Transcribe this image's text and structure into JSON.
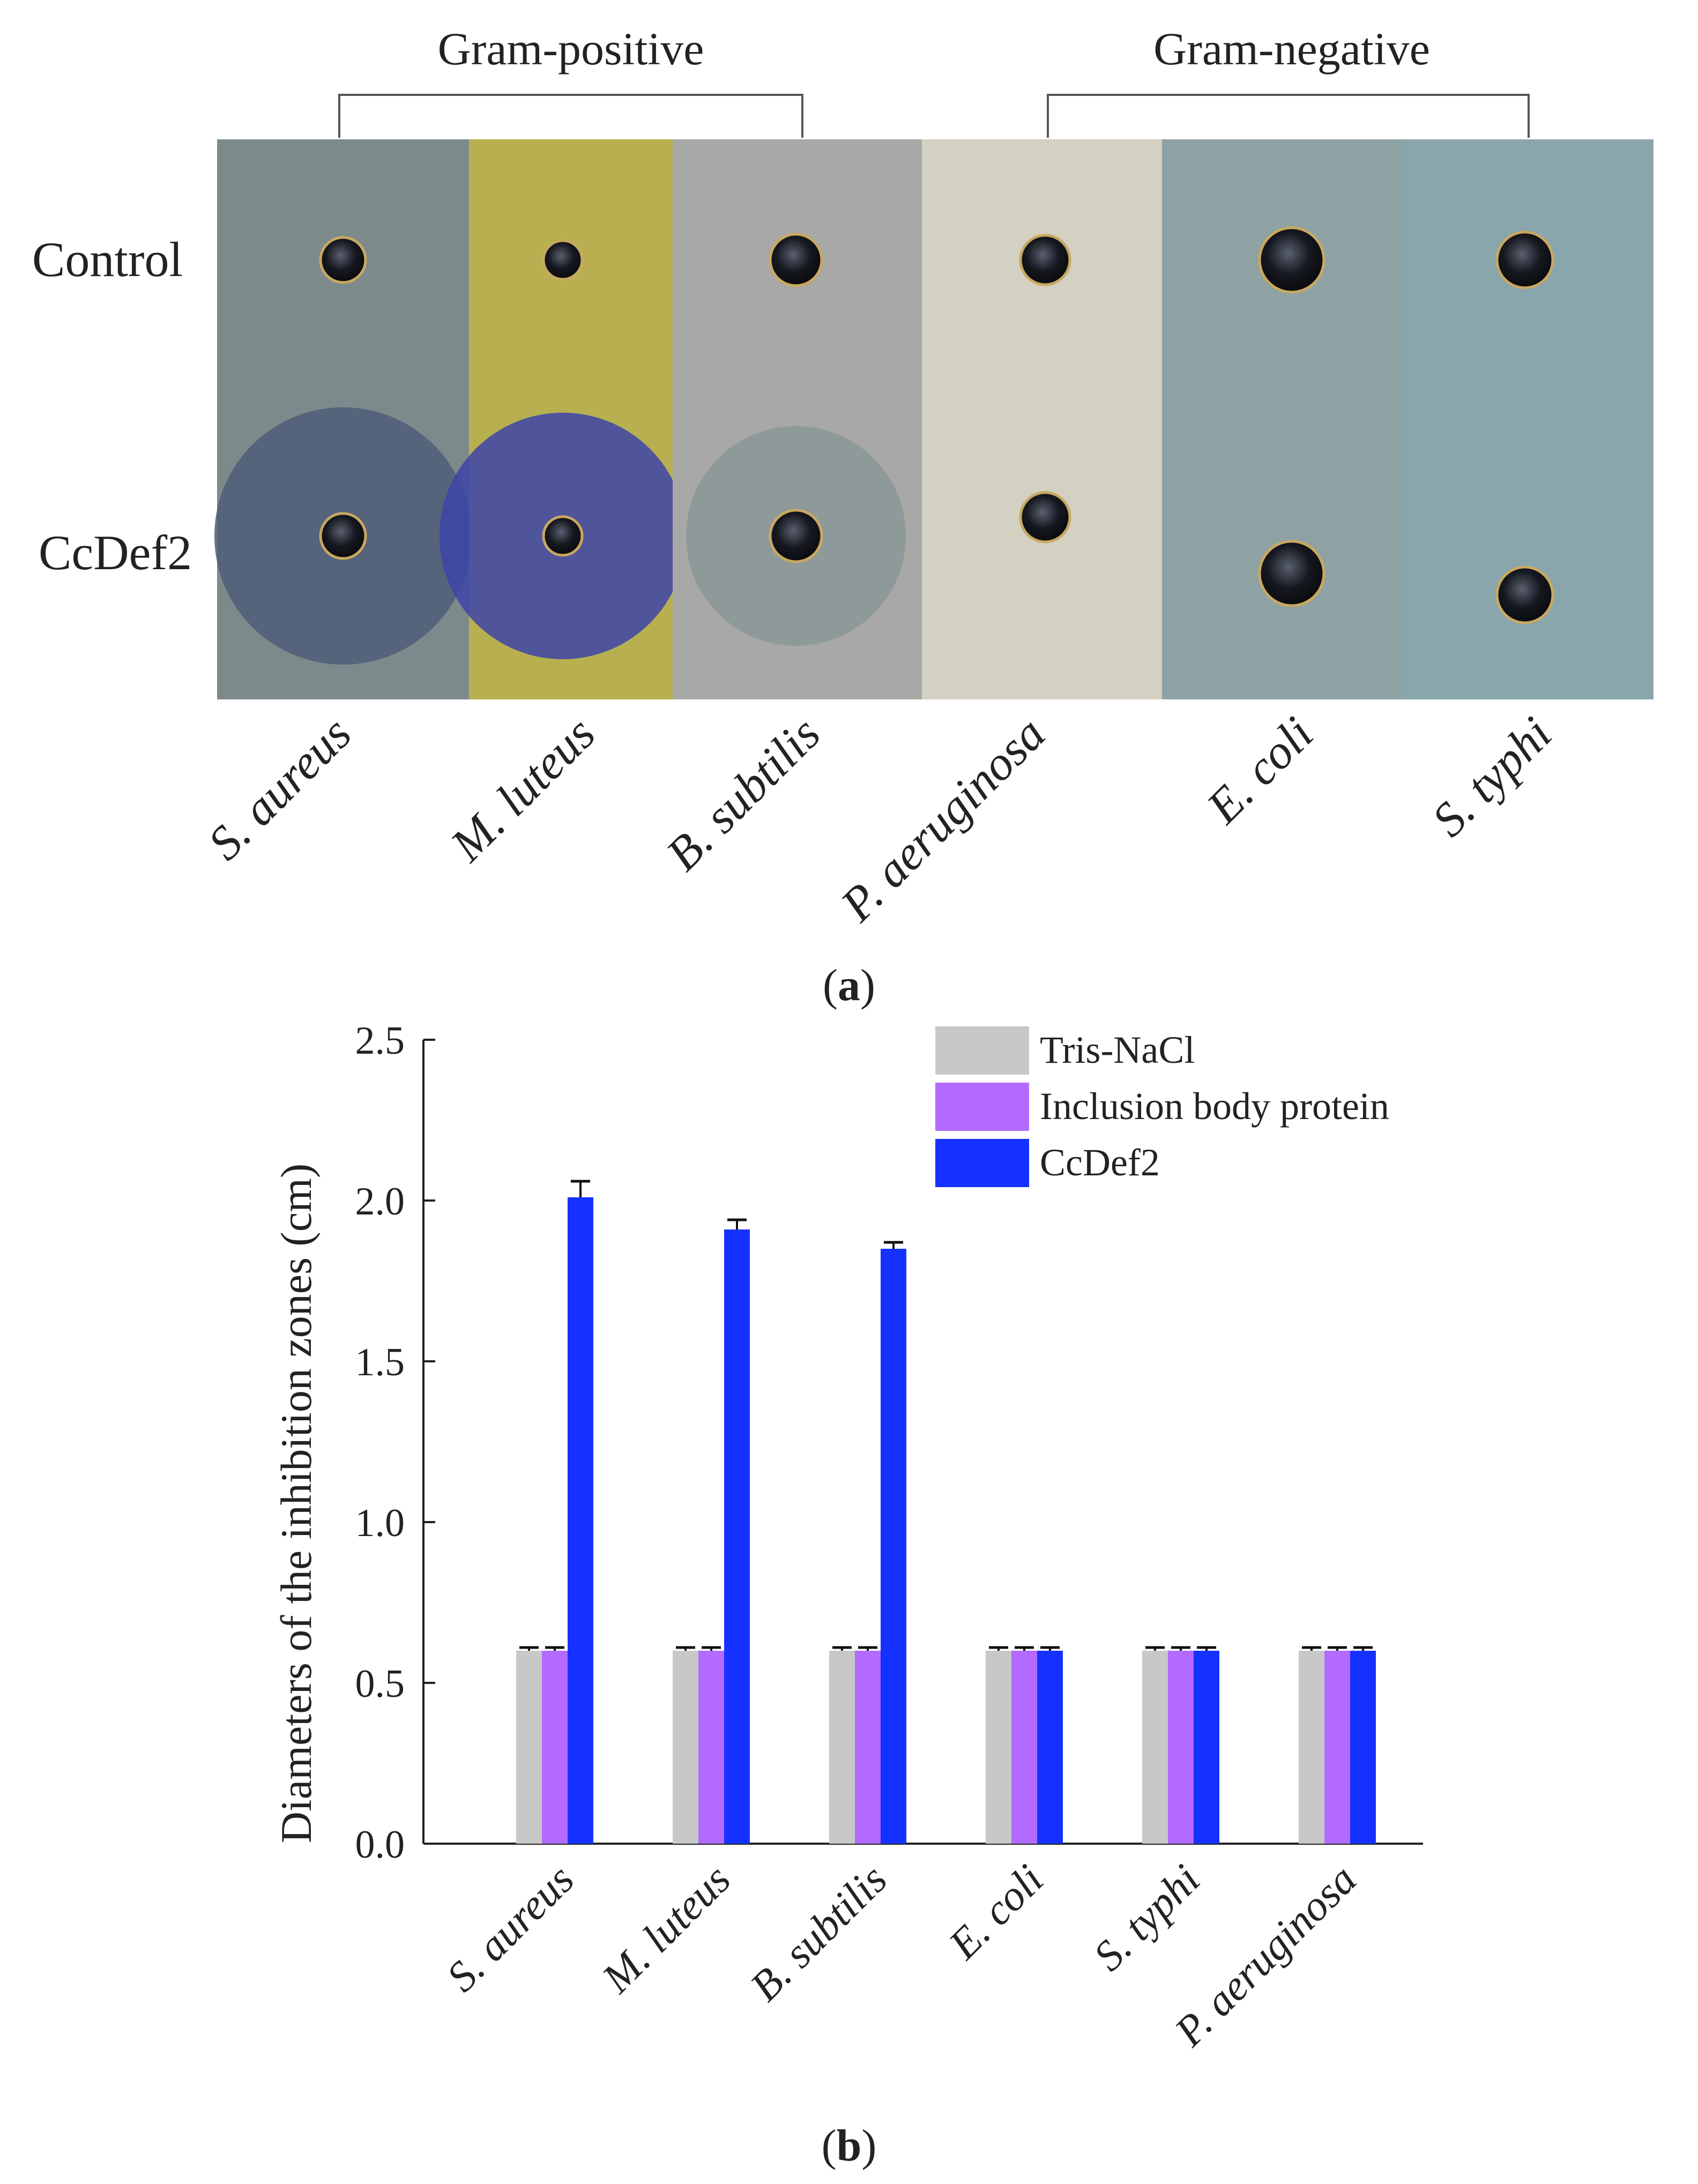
{
  "panel_a": {
    "group_labels": [
      "Gram-positive",
      "Gram-negative"
    ],
    "row_labels": [
      "Control",
      "CcDef2"
    ],
    "strains": [
      "S. aureus",
      "M. luteus",
      "B. subtilis",
      "P. aeruginosa",
      "E. coli",
      "S. typhi"
    ],
    "strip_colors": [
      "#7d8a8c",
      "#b8b050",
      "#a8a8a6",
      "#d4d0c2",
      "#8fa2a3",
      "#8aa6ad"
    ],
    "zone_colors": [
      "#4e5c78",
      "#3c44a8",
      "#8a9898",
      null,
      null,
      null
    ],
    "caption_letter": "a"
  },
  "panel_b": {
    "caption_letter": "b"
  },
  "chart_data": {
    "type": "bar",
    "title": "",
    "xlabel": "",
    "ylabel": "Diameters of the inhibition zones (cm)",
    "ylim": [
      0,
      2.5
    ],
    "yticks": [
      0.0,
      0.5,
      1.0,
      1.5,
      2.0,
      2.5
    ],
    "ytick_labels": [
      "0.0",
      "0.5",
      "1.0",
      "1.5",
      "2.0",
      "2.5"
    ],
    "categories": [
      "S. aureus",
      "M. luteus",
      "B. subtilis",
      "E. coli",
      "S. typhi",
      "P. aeruginosa"
    ],
    "legend_position": "top-right",
    "series": [
      {
        "name": "Tris-NaCl",
        "color": "#c8c8c8",
        "values": [
          0.6,
          0.6,
          0.6,
          0.6,
          0.6,
          0.6
        ],
        "errors": [
          0.01,
          0.01,
          0.01,
          0.01,
          0.01,
          0.01
        ]
      },
      {
        "name": "Inclusion body protein",
        "color": "#b36aff",
        "values": [
          0.6,
          0.6,
          0.6,
          0.6,
          0.6,
          0.6
        ],
        "errors": [
          0.01,
          0.01,
          0.01,
          0.01,
          0.01,
          0.01
        ]
      },
      {
        "name": "CcDef2",
        "color": "#1531ff",
        "values": [
          2.01,
          1.91,
          1.85,
          0.6,
          0.6,
          0.6
        ],
        "errors": [
          0.05,
          0.03,
          0.02,
          0.01,
          0.01,
          0.01
        ]
      }
    ]
  }
}
